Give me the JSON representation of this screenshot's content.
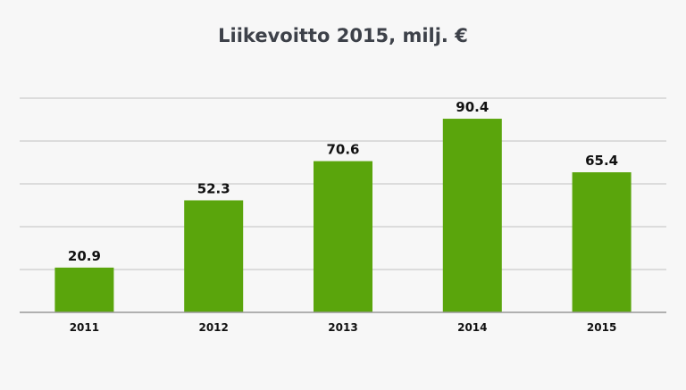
{
  "chart_data": {
    "type": "bar",
    "title": "Liikevoitto 2015, milj. €",
    "xlabel": "",
    "ylabel": "",
    "categories": [
      "2011",
      "2012",
      "2013",
      "2014",
      "2015"
    ],
    "series": [
      {
        "values": [
          20.9,
          52.3,
          70.6,
          90.4,
          65.4
        ]
      }
    ],
    "data_labels": [
      "20.9",
      "52.3",
      "70.6",
      "90.4",
      "65.4"
    ],
    "ylim": [
      0,
      100
    ],
    "grid": true,
    "legend": "none",
    "bar_color": "#5aa50c",
    "grid_color": "#cccccc",
    "axis_color": "#999999"
  }
}
